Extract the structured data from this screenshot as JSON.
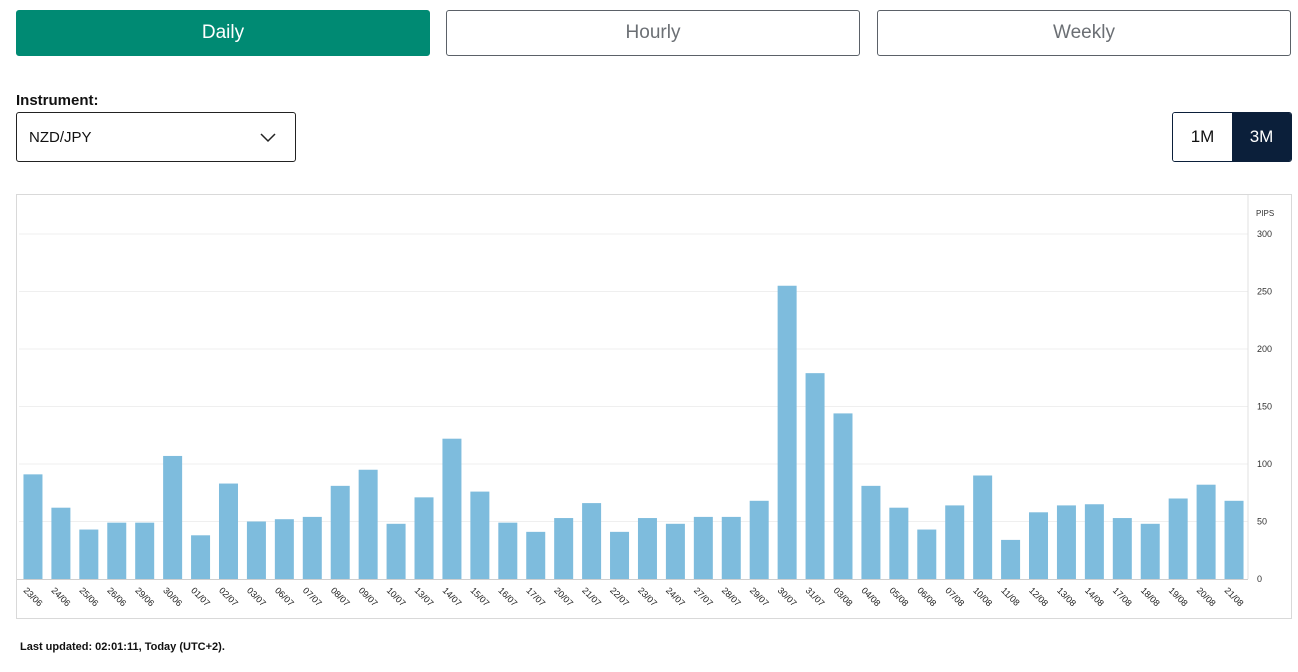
{
  "tabs": [
    {
      "label": "Daily",
      "active": true
    },
    {
      "label": "Hourly",
      "active": false
    },
    {
      "label": "Weekly",
      "active": false
    }
  ],
  "instrument": {
    "label": "Instrument:",
    "value": "NZD/JPY",
    "icon": "chevron-down-icon"
  },
  "range": {
    "options": [
      "1M",
      "3M"
    ],
    "selected": "3M"
  },
  "chart_data": {
    "type": "bar",
    "ylabel": "PIPS",
    "ylim": [
      0,
      300
    ],
    "yticks": [
      0,
      50,
      100,
      150,
      200,
      250,
      300
    ],
    "grid": true,
    "bar_color": "#7ebcdd",
    "categories": [
      "23/06",
      "24/06",
      "25/06",
      "26/06",
      "29/06",
      "30/06",
      "01/07",
      "02/07",
      "03/07",
      "06/07",
      "07/07",
      "08/07",
      "09/07",
      "10/07",
      "13/07",
      "14/07",
      "15/07",
      "16/07",
      "17/07",
      "20/07",
      "21/07",
      "22/07",
      "23/07",
      "24/07",
      "27/07",
      "28/07",
      "29/07",
      "30/07",
      "31/07",
      "03/08",
      "04/08",
      "05/08",
      "06/08",
      "07/08",
      "10/08",
      "11/08",
      "12/08",
      "13/08",
      "14/08",
      "17/08",
      "18/08",
      "19/08",
      "20/08",
      "21/08"
    ],
    "values": [
      91,
      62,
      43,
      49,
      49,
      107,
      38,
      83,
      50,
      52,
      54,
      81,
      95,
      48,
      71,
      122,
      76,
      49,
      41,
      53,
      66,
      41,
      53,
      48,
      54,
      54,
      68,
      255,
      179,
      144,
      81,
      62,
      43,
      64,
      90,
      34,
      58,
      64,
      65,
      53,
      48,
      70,
      82,
      68
    ]
  },
  "footer": {
    "last_updated": "Last updated: 02:01:11, Today (UTC+2)."
  }
}
